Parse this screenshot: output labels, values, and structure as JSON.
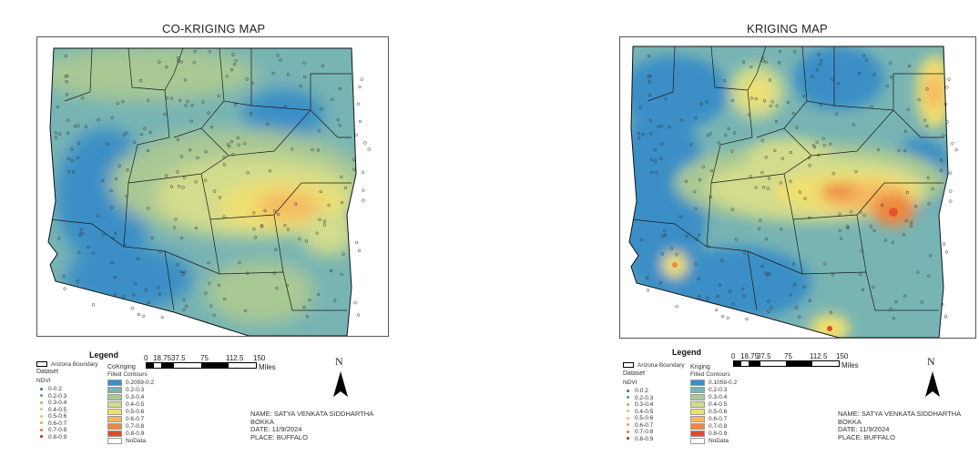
{
  "maps": [
    {
      "title": "CO-KRIGING MAP",
      "legend": {
        "title": "Legend",
        "boundary_label": "Arizona Boundary",
        "dataset_label": "Dataset",
        "ndvi_label": "NDVI",
        "ndvi_classes": [
          "0-0.2",
          "0.2-0.3",
          "0.3-0.4",
          "0.4-0.5",
          "0.5-0.6",
          "0.6-0.7",
          "0.7-0.8",
          "0.8-0.9"
        ],
        "ndvi_colors": [
          "#3a6ab0",
          "#5a9a6a",
          "#9ab86a",
          "#c8cc6a",
          "#e8c060",
          "#e8a050",
          "#e07040",
          "#c02020"
        ],
        "surface_title": "CoKriging",
        "surface_subtitle": "Filled Contours",
        "surface_classes": [
          "0.2059-0.2",
          "0.2-0.3",
          "0.3-0.4",
          "0.4-0.5",
          "0.5-0.6",
          "0.6-0.7",
          "0.7-0.8",
          "0.8-0.9",
          "NoData"
        ],
        "surface_colors": [
          "#3b8fc6",
          "#78b4b4",
          "#a8c894",
          "#d2dc8c",
          "#f0e070",
          "#f5b860",
          "#ee8840",
          "#e04a2a",
          "#ffffff"
        ]
      },
      "scale": {
        "ticks": [
          "0",
          "18.75",
          "37.5",
          "75",
          "112.5",
          "150"
        ],
        "unit": "Miles"
      },
      "north": "N",
      "meta": [
        "NAME: SATYA VENKATA SIDDHARTHA",
        "BOKKA",
        "DATE: 11/9/2024",
        "PLACE: BUFFALO"
      ]
    },
    {
      "title": "KRIGING MAP",
      "legend": {
        "title": "Legend",
        "boundary_label": "Arizona Boundary",
        "dataset_label": "Dataset",
        "ndvi_label": "NDVI",
        "ndvi_classes": [
          "0-0.2",
          "0.2-0.3",
          "0.3-0.4",
          "0.4-0.5",
          "0.5-0.6",
          "0.6-0.7",
          "0.7-0.8",
          "0.8-0.9"
        ],
        "ndvi_colors": [
          "#3a6ab0",
          "#5a9a6a",
          "#9ab86a",
          "#c8cc6a",
          "#e8c060",
          "#e8a050",
          "#e07040",
          "#c02020"
        ],
        "surface_title": "Kriging",
        "surface_subtitle": "Filled Contours",
        "surface_classes": [
          "0.1059-0.2",
          "0.2-0.3",
          "0.3-0.4",
          "0.4-0.5",
          "0.5-0.6",
          "0.6-0.7",
          "0.7-0.8",
          "0.8-0.9",
          "NoData"
        ],
        "surface_colors": [
          "#3b8fc6",
          "#78b4b4",
          "#a8c894",
          "#d2dc8c",
          "#f0e070",
          "#f5b860",
          "#ee8840",
          "#e04a2a",
          "#ffffff"
        ]
      },
      "scale": {
        "ticks": [
          "0",
          "18.75",
          "37.5",
          "75",
          "112.5",
          "150"
        ],
        "unit": "Miles"
      },
      "north": "N",
      "meta": [
        "NAME: SATYA VENKATA SIDDHARTHA",
        "BOKKA",
        "DATE: 11/9/2024",
        "PLACE: BUFFALO"
      ]
    }
  ]
}
